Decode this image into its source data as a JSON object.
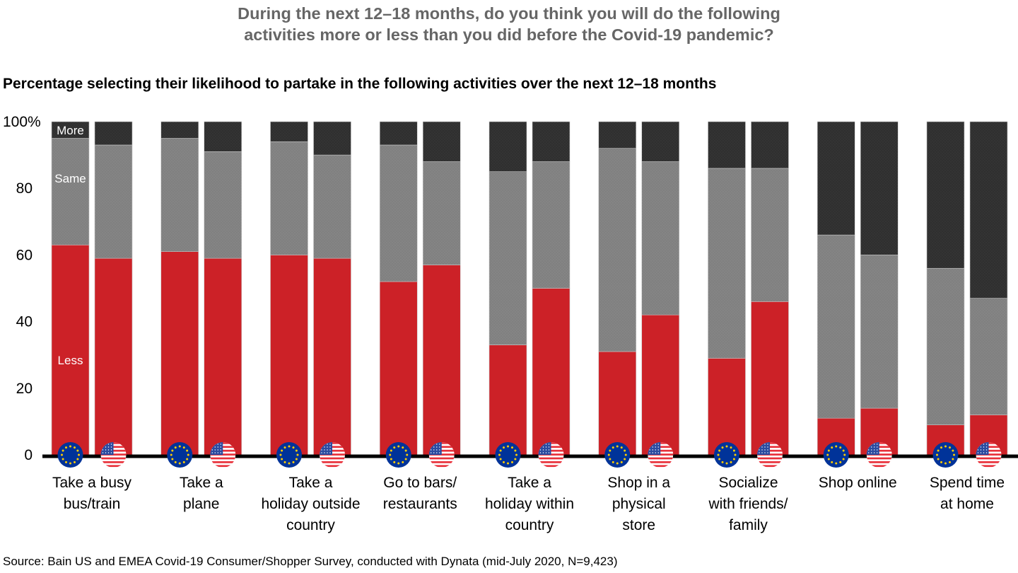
{
  "title_lines": [
    "During the next 12–18 months, do you think you will do the following",
    "activities more or less than you did before the Covid-19 pandemic?"
  ],
  "subtitle": "Percentage selecting their likelihood to partake in the following activities over the next 12–18 months",
  "source": "Source: Bain US and EMEA Covid-19 Consumer/Shopper Survey, conducted with Dynata (mid-July 2020, N=9,423)",
  "chart_data": {
    "type": "bar",
    "stacked": true,
    "normalized": "percent",
    "title": "During the next 12–18 months, do you think you will do the following activities more or less than you did before the Covid-19 pandemic?",
    "subtitle": "Percentage selecting their likelihood to partake in the following activities over the next 12–18 months",
    "xlabel": "",
    "ylabel": "",
    "ylim": [
      0,
      100
    ],
    "y_ticks": [
      "0",
      "20",
      "40",
      "60",
      "80",
      "100%"
    ],
    "y_tick_values": [
      0,
      20,
      40,
      60,
      80,
      100
    ],
    "grid": false,
    "legend": "inline-labels on first bar",
    "segment_labels": [
      "Less",
      "Same",
      "More"
    ],
    "regions": [
      {
        "name": "EU",
        "icon": "eu-flag-icon"
      },
      {
        "name": "US",
        "icon": "us-flag-icon"
      }
    ],
    "colors": {
      "Less": "#cc2127",
      "Same": "#808080",
      "More": "#2f2f2f",
      "axis": "#000000"
    },
    "categories": [
      "Take a busy bus/train",
      "Take a plane",
      "Take a holiday outside country",
      "Go to bars/ restaurants",
      "Take a holiday within country",
      "Shop in a physical store",
      "Socialize with friends/ family",
      "Shop online",
      "Spend time at home"
    ],
    "category_label_lines": [
      [
        "Take a busy",
        "bus/train"
      ],
      [
        "Take a",
        "plane"
      ],
      [
        "Take a",
        "holiday outside",
        "country"
      ],
      [
        "Go to bars/",
        "restaurants"
      ],
      [
        "Take a",
        "holiday within",
        "country"
      ],
      [
        "Shop in a",
        "physical",
        "store"
      ],
      [
        "Socialize",
        "with friends/",
        "family"
      ],
      [
        "Shop online"
      ],
      [
        "Spend time",
        "at home"
      ]
    ],
    "series": [
      {
        "name": "Less",
        "EU": [
          63,
          61,
          60,
          52,
          33,
          31,
          29,
          11,
          9
        ],
        "US": [
          59,
          59,
          59,
          57,
          50,
          42,
          46,
          14,
          12
        ]
      },
      {
        "name": "Same",
        "EU": [
          32,
          34,
          34,
          41,
          52,
          61,
          57,
          55,
          47
        ],
        "US": [
          34,
          32,
          31,
          31,
          38,
          46,
          40,
          46,
          35
        ]
      },
      {
        "name": "More",
        "EU": [
          5,
          5,
          6,
          7,
          15,
          8,
          14,
          34,
          44
        ],
        "US": [
          7,
          9,
          10,
          12,
          12,
          12,
          14,
          40,
          53
        ]
      }
    ]
  }
}
